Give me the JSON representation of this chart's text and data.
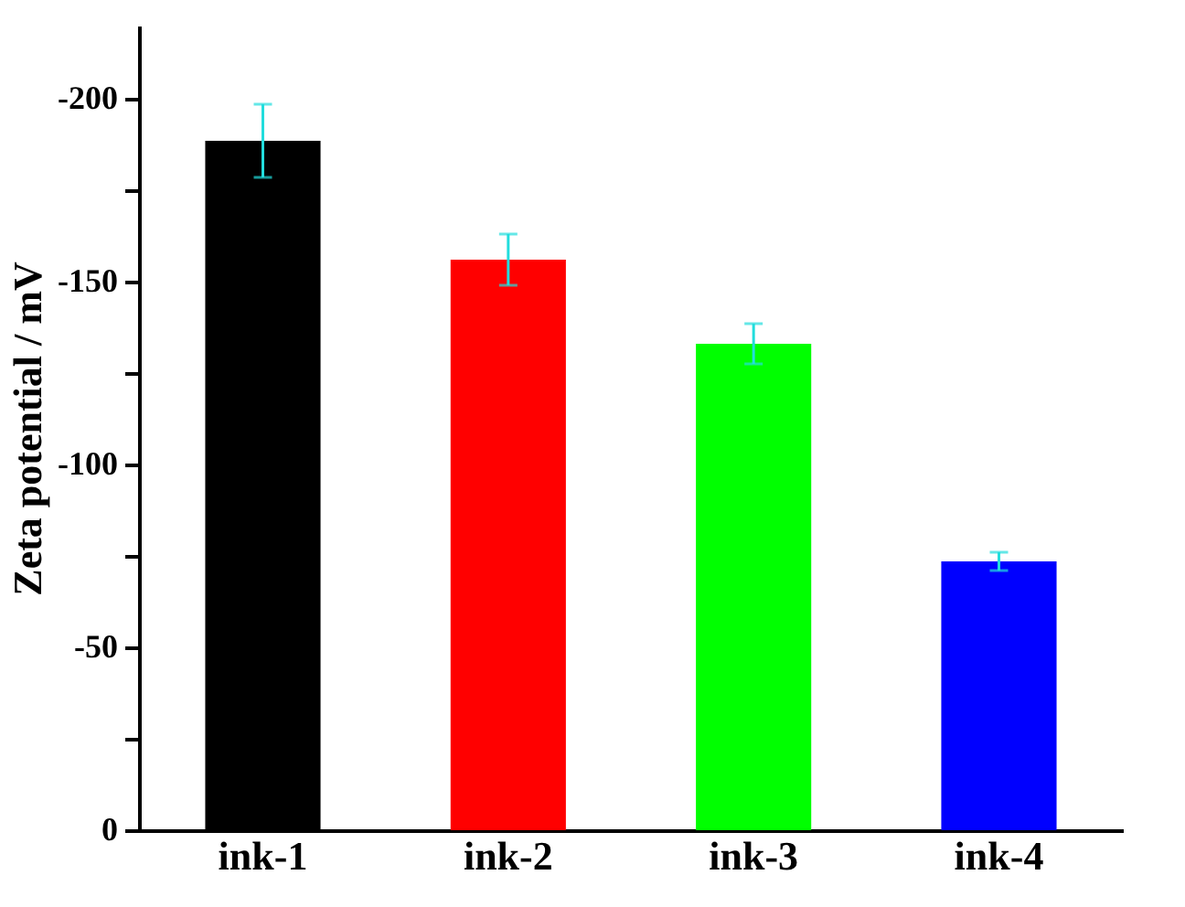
{
  "chart_data": {
    "type": "bar",
    "ylabel": "Zeta potential / mV",
    "categories": [
      "ink-1",
      "ink-2",
      "ink-3",
      "ink-4"
    ],
    "values": [
      -188.5,
      -156,
      -133,
      -73.5
    ],
    "colors": [
      "#000000",
      "#ff0000",
      "#00ff00",
      "#0000ff"
    ],
    "errors": [
      10,
      7,
      5.5,
      2.5
    ],
    "ylim": [
      0,
      -220
    ],
    "yticks": [
      0,
      {
        "value": -25,
        "label": null
      },
      -50,
      {
        "value": -75,
        "label": null
      },
      -100,
      {
        "value": -125,
        "label": null
      },
      -150,
      {
        "value": -175,
        "label": null
      },
      -200
    ],
    "grid": false
  }
}
